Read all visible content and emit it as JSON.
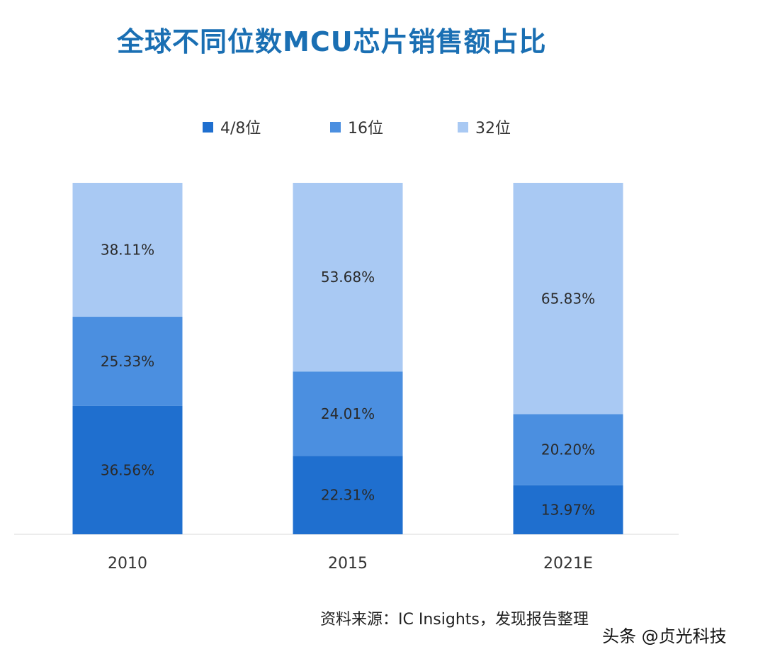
{
  "chart_data": {
    "type": "bar",
    "stacked": true,
    "title": "全球不同位数MCU芯片销售额占比",
    "categories": [
      "2010",
      "2015",
      "2021E"
    ],
    "series": [
      {
        "name": "4/8位",
        "color": "#1f6fcf",
        "values": [
          36.56,
          22.31,
          13.97
        ],
        "labels": [
          "36.56%",
          "22.31%",
          "13.97%"
        ]
      },
      {
        "name": "16位",
        "color": "#4b8fe0",
        "values": [
          25.33,
          24.01,
          20.2
        ],
        "labels": [
          "25.33%",
          "24.01%",
          "20.20%"
        ]
      },
      {
        "name": "32位",
        "color": "#a9c9f3",
        "values": [
          38.11,
          53.68,
          65.83
        ],
        "labels": [
          "38.11%",
          "53.68%",
          "65.83%"
        ]
      }
    ],
    "unit": "%",
    "ylim": [
      0,
      100
    ],
    "grid": false,
    "legend_position": "top"
  },
  "source": "资料来源：IC Insights，发现报告整理",
  "watermark": "头条 @贞光科技"
}
